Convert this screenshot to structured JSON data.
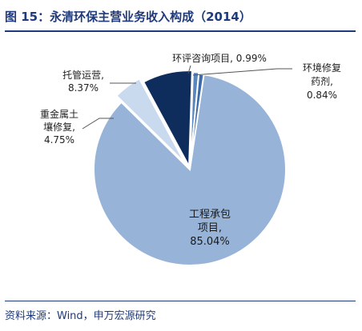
{
  "title": "图 15：永清环保主营业务收入构成（2014）",
  "source": "资料来源：Wind，申万宏源研究",
  "chart_data": {
    "type": "pie",
    "title": "图 15：永清环保主营业务收入构成（2014）",
    "slices": [
      {
        "name": "工程承包项目",
        "value": 85.04,
        "color": "#97b4d8",
        "label_lines": [
          "工程承包",
          "项目,",
          "85.04%"
        ]
      },
      {
        "name": "重金属土壤修复",
        "value": 4.75,
        "color": "#c9d9ee",
        "label_lines": [
          "重金属土",
          "壤修复,",
          "4.75%"
        ]
      },
      {
        "name": "托管运营",
        "value": 8.37,
        "color": "#0f2d5c",
        "label_lines": [
          "托管运营,",
          "8.37%"
        ]
      },
      {
        "name": "环评咨询项目",
        "value": 0.99,
        "color": "#5a86be",
        "label_lines": [
          "环评咨询项目, 0.99%"
        ]
      },
      {
        "name": "环境修复药剂",
        "value": 0.84,
        "color": "#3d6aa8",
        "label_lines": [
          "环境修复",
          "药剂,",
          "0.84%"
        ]
      }
    ]
  }
}
